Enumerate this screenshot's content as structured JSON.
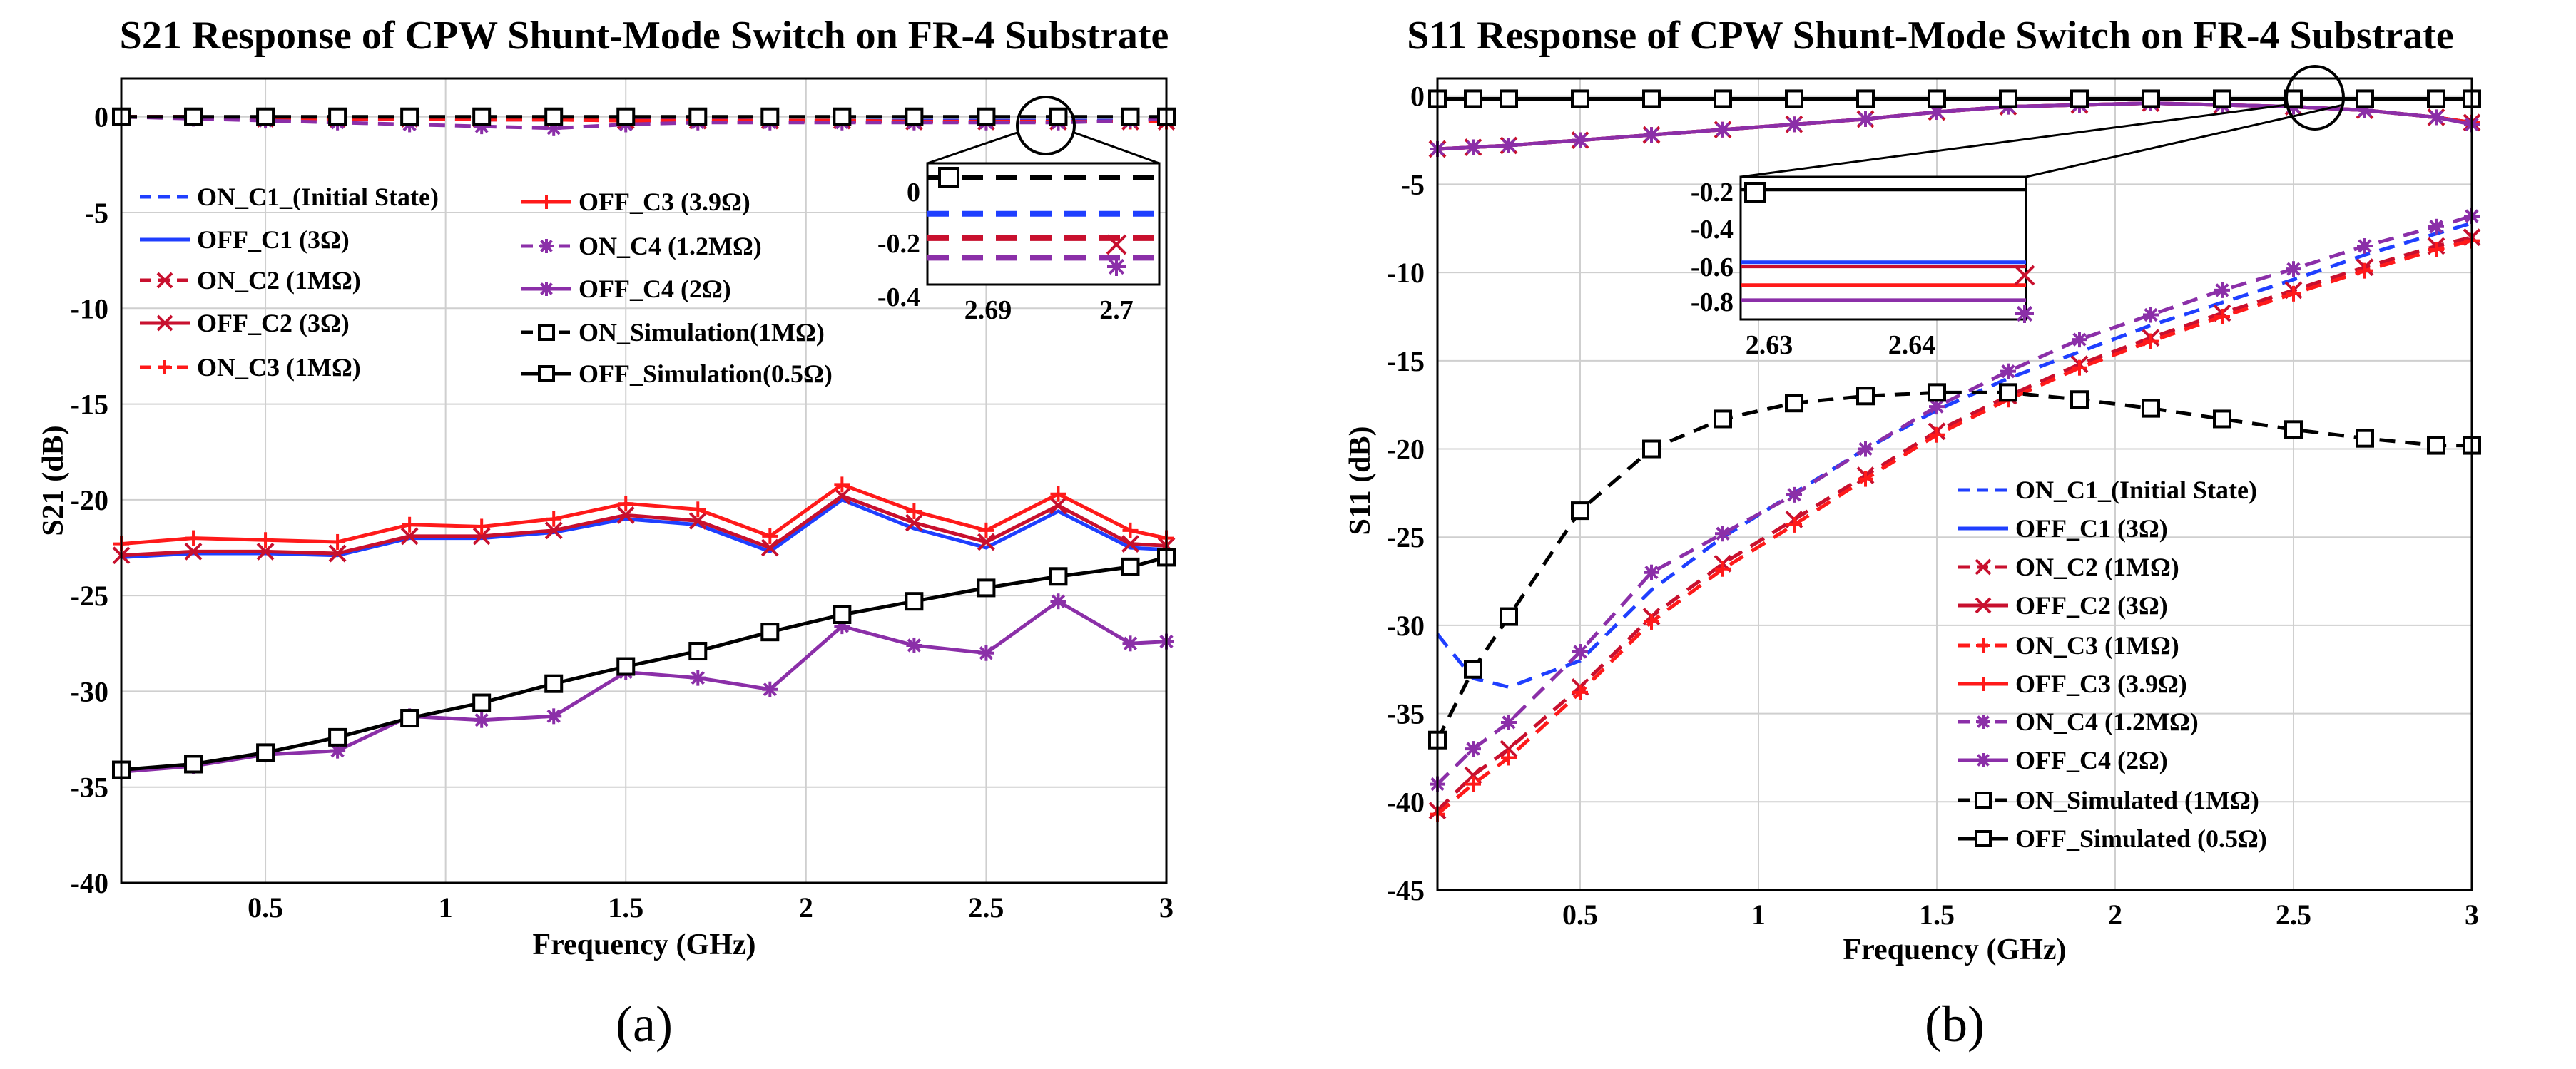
{
  "chart_data": [
    {
      "type": "line",
      "title": "S21 Response of CPW Shunt-Mode Switch on FR-4 Substrate",
      "xlabel": "Frequency (GHz)",
      "ylabel": "S21 (dB)",
      "caption": "(a)",
      "xlim": [
        0.1,
        3
      ],
      "ylim": [
        -40,
        2
      ],
      "xticks": [
        "0.5",
        "1",
        "1.5",
        "2",
        "2.5",
        "3"
      ],
      "xtick_values": [
        0.5,
        1,
        1.5,
        2,
        2.5,
        3
      ],
      "yticks": [
        "0",
        "-5",
        "-10",
        "-15",
        "-20",
        "-25",
        "-30",
        "-35",
        "-40"
      ],
      "ytick_values": [
        0,
        -5,
        -10,
        -15,
        -20,
        -25,
        -30,
        -35,
        -40
      ],
      "grid": true,
      "x": [
        0.1,
        0.3,
        0.5,
        0.7,
        0.9,
        1.1,
        1.3,
        1.5,
        1.7,
        1.9,
        2.1,
        2.3,
        2.5,
        2.7,
        2.9,
        3.0
      ],
      "series": [
        {
          "name": "ON_C1_(Initial State)",
          "color": "#1f3fff",
          "dash": "dash",
          "marker": "none",
          "values": [
            0,
            0,
            -0.1,
            -0.1,
            -0.1,
            -0.15,
            -0.15,
            -0.15,
            -0.15,
            -0.2,
            -0.2,
            -0.2,
            -0.2,
            -0.2,
            -0.2,
            -0.2
          ]
        },
        {
          "name": "OFF_C1 (3Ω)",
          "color": "#1f3fff",
          "dash": "solid",
          "marker": "none",
          "values": [
            -23.0,
            -22.8,
            -22.8,
            -22.9,
            -22.0,
            -22.0,
            -21.7,
            -21.0,
            -21.3,
            -22.7,
            -20.0,
            -21.5,
            -22.5,
            -20.6,
            -22.5,
            -22.6
          ]
        },
        {
          "name": "ON_C2 (1MΩ)",
          "color": "#c8102e",
          "dash": "dash",
          "marker": "x",
          "values": [
            0,
            0,
            -0.1,
            -0.1,
            -0.1,
            -0.15,
            -0.15,
            -0.2,
            -0.2,
            -0.2,
            -0.2,
            -0.25,
            -0.25,
            -0.25,
            -0.25,
            -0.25
          ]
        },
        {
          "name": "OFF_C2 (3Ω)",
          "color": "#c8102e",
          "dash": "solid",
          "marker": "x",
          "values": [
            -22.9,
            -22.7,
            -22.7,
            -22.8,
            -21.9,
            -21.9,
            -21.6,
            -20.8,
            -21.1,
            -22.5,
            -19.8,
            -21.2,
            -22.2,
            -20.3,
            -22.3,
            -22.4
          ]
        },
        {
          "name": "ON_C3 (1MΩ)",
          "color": "#ff1a1a",
          "dash": "dash",
          "marker": "+",
          "values": [
            0,
            0,
            -0.1,
            -0.1,
            -0.1,
            -0.15,
            -0.15,
            -0.2,
            -0.2,
            -0.2,
            -0.2,
            -0.25,
            -0.25,
            -0.25,
            -0.25,
            -0.25
          ]
        },
        {
          "name": "OFF_C3 (3.9Ω)",
          "color": "#ff1a1a",
          "dash": "solid",
          "marker": "+",
          "values": [
            -22.3,
            -22.0,
            -22.1,
            -22.2,
            -21.3,
            -21.4,
            -21.0,
            -20.2,
            -20.5,
            -21.9,
            -19.2,
            -20.6,
            -21.6,
            -19.7,
            -21.6,
            -22.0
          ]
        },
        {
          "name": "ON_C4 (1.2MΩ)",
          "color": "#8b2fa8",
          "dash": "dash",
          "marker": "*",
          "values": [
            0,
            -0.1,
            -0.2,
            -0.3,
            -0.4,
            -0.5,
            -0.6,
            -0.4,
            -0.3,
            -0.3,
            -0.3,
            -0.3,
            -0.3,
            -0.3,
            -0.2,
            -0.1
          ]
        },
        {
          "name": "OFF_C4 (2Ω)",
          "color": "#8b2fa8",
          "dash": "solid",
          "marker": "*",
          "values": [
            -34.2,
            -33.9,
            -33.3,
            -33.1,
            -31.3,
            -31.5,
            -31.3,
            -29.0,
            -29.3,
            -29.9,
            -26.6,
            -27.6,
            -28.0,
            -25.3,
            -27.5,
            -27.4
          ]
        },
        {
          "name": "ON_Simulation(1MΩ)",
          "color": "#000000",
          "dash": "dash",
          "marker": "square",
          "values": [
            0,
            0,
            0,
            0,
            0,
            0,
            0,
            0,
            0,
            0,
            0,
            0,
            0,
            0,
            0,
            0
          ]
        },
        {
          "name": "OFF_Simulation(0.5Ω)",
          "color": "#000000",
          "dash": "solid",
          "marker": "square",
          "values": [
            -34.1,
            -33.8,
            -33.2,
            -32.4,
            -31.4,
            -30.6,
            -29.6,
            -28.7,
            -27.9,
            -26.9,
            -26.0,
            -25.3,
            -24.6,
            -24.0,
            -23.5,
            -23.0
          ]
        }
      ],
      "inset": {
        "xticks": [
          "2.69",
          "2.7"
        ],
        "yticks": [
          "0",
          "-0.2",
          "-0.4"
        ],
        "levels": [
          {
            "color": "#000000",
            "value": 0
          },
          {
            "color": "#1f3fff",
            "value": -0.15
          },
          {
            "color": "#c8102e",
            "value": -0.25
          },
          {
            "color": "#8b2fa8",
            "value": -0.33
          }
        ]
      }
    },
    {
      "type": "line",
      "title": "S11 Response of CPW Shunt-Mode Switch on FR-4 Substrate",
      "xlabel": "Frequency (GHz)",
      "ylabel": "S11 (dB)",
      "caption": "(b)",
      "xlim": [
        0.1,
        3
      ],
      "ylim": [
        -45,
        1
      ],
      "xticks": [
        "0.5",
        "1",
        "1.5",
        "2",
        "2.5",
        "3"
      ],
      "xtick_values": [
        0.5,
        1,
        1.5,
        2,
        2.5,
        3
      ],
      "yticks": [
        "0",
        "-5",
        "-10",
        "-15",
        "-20",
        "-25",
        "-30",
        "-35",
        "-40",
        "-45"
      ],
      "ytick_values": [
        0,
        -5,
        -10,
        -15,
        -20,
        -25,
        -30,
        -35,
        -40,
        -45
      ],
      "grid": true,
      "x": [
        0.1,
        0.2,
        0.3,
        0.5,
        0.7,
        0.9,
        1.1,
        1.3,
        1.5,
        1.7,
        1.9,
        2.1,
        2.3,
        2.5,
        2.7,
        2.9,
        3.0
      ],
      "series": [
        {
          "name": "ON_C1_(Initial State)",
          "color": "#1f3fff",
          "dash": "dash",
          "marker": "none",
          "values": [
            -30.5,
            -33.0,
            -33.5,
            -32.0,
            -28.0,
            -25.0,
            -22.5,
            -20.0,
            -17.8,
            -16.0,
            -14.5,
            -13.0,
            -11.7,
            -10.4,
            -9.0,
            -7.8,
            -7.2
          ]
        },
        {
          "name": "OFF_C1 (3Ω)",
          "color": "#1f3fff",
          "dash": "solid",
          "marker": "none",
          "values": [
            -3.0,
            -2.9,
            -2.8,
            -2.5,
            -2.2,
            -1.9,
            -1.6,
            -1.3,
            -0.9,
            -0.6,
            -0.5,
            -0.4,
            -0.5,
            -0.6,
            -0.8,
            -1.2,
            -1.5
          ]
        },
        {
          "name": "ON_C2 (1MΩ)",
          "color": "#c8102e",
          "dash": "dash",
          "marker": "x",
          "values": [
            -40.5,
            -38.5,
            -37.0,
            -33.5,
            -29.5,
            -26.5,
            -24.0,
            -21.5,
            -19.0,
            -17.0,
            -15.2,
            -13.7,
            -12.3,
            -11.0,
            -9.7,
            -8.5,
            -8.0
          ]
        },
        {
          "name": "OFF_C2 (3Ω)",
          "color": "#c8102e",
          "dash": "solid",
          "marker": "x",
          "values": [
            -3.0,
            -2.9,
            -2.8,
            -2.5,
            -2.2,
            -1.9,
            -1.6,
            -1.3,
            -0.9,
            -0.6,
            -0.5,
            -0.4,
            -0.5,
            -0.6,
            -0.8,
            -1.2,
            -1.5
          ]
        },
        {
          "name": "ON_C3 (1MΩ)",
          "color": "#ff1a1a",
          "dash": "dash",
          "marker": "+",
          "values": [
            -40.7,
            -39.0,
            -37.5,
            -33.8,
            -29.8,
            -26.8,
            -24.3,
            -21.7,
            -19.2,
            -17.2,
            -15.4,
            -13.9,
            -12.5,
            -11.2,
            -9.9,
            -8.7,
            -8.2
          ]
        },
        {
          "name": "OFF_C3 (3.9Ω)",
          "color": "#ff1a1a",
          "dash": "solid",
          "marker": "+",
          "values": [
            -3.0,
            -2.9,
            -2.8,
            -2.5,
            -2.2,
            -1.9,
            -1.6,
            -1.3,
            -0.9,
            -0.6,
            -0.5,
            -0.4,
            -0.5,
            -0.6,
            -0.8,
            -1.2,
            -1.5
          ]
        },
        {
          "name": "ON_C4 (1.2MΩ)",
          "color": "#8b2fa8",
          "dash": "dash",
          "marker": "*",
          "values": [
            -39.0,
            -37.0,
            -35.5,
            -31.5,
            -27.0,
            -24.8,
            -22.6,
            -20.0,
            -17.6,
            -15.6,
            -13.8,
            -12.4,
            -11.0,
            -9.8,
            -8.5,
            -7.4,
            -6.8
          ]
        },
        {
          "name": "OFF_C4 (2Ω)",
          "color": "#8b2fa8",
          "dash": "solid",
          "marker": "*",
          "values": [
            -3.0,
            -2.9,
            -2.8,
            -2.5,
            -2.2,
            -1.9,
            -1.6,
            -1.3,
            -0.9,
            -0.6,
            -0.5,
            -0.4,
            -0.5,
            -0.6,
            -0.8,
            -1.2,
            -1.6
          ]
        },
        {
          "name": "ON_Simulated (1MΩ)",
          "color": "#000000",
          "dash": "dash",
          "marker": "square",
          "values": [
            -36.5,
            -32.5,
            -29.5,
            -23.5,
            -20.0,
            -18.3,
            -17.4,
            -17.0,
            -16.8,
            -16.8,
            -17.2,
            -17.7,
            -18.3,
            -18.9,
            -19.4,
            -19.8,
            -19.8
          ]
        },
        {
          "name": "OFF_Simulated (0.5Ω)",
          "color": "#000000",
          "dash": "solid",
          "marker": "square",
          "values": [
            -0.15,
            -0.15,
            -0.15,
            -0.15,
            -0.15,
            -0.15,
            -0.15,
            -0.15,
            -0.15,
            -0.15,
            -0.15,
            -0.15,
            -0.15,
            -0.15,
            -0.15,
            -0.15,
            -0.15
          ]
        }
      ],
      "inset": {
        "xticks": [
          "2.63",
          "2.64"
        ],
        "yticks": [
          "-0.2",
          "-0.4",
          "-0.6",
          "-0.8"
        ],
        "levels": [
          {
            "color": "#000000",
            "value": -0.2
          },
          {
            "color": "#1f3fff",
            "value": -0.6
          },
          {
            "color": "#c8102e",
            "value": -0.62
          },
          {
            "color": "#ff1a1a",
            "value": -0.72
          },
          {
            "color": "#8b2fa8",
            "value": -0.8
          }
        ]
      }
    }
  ]
}
